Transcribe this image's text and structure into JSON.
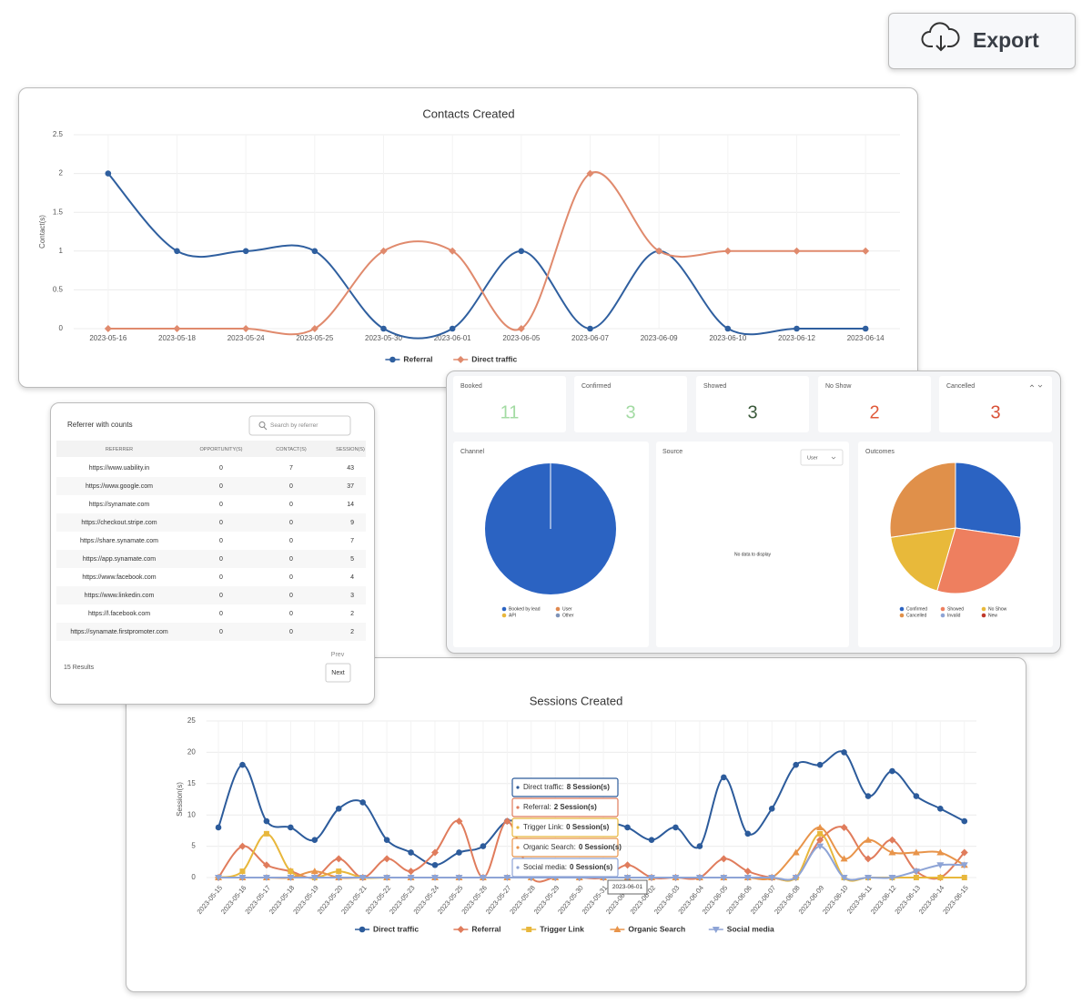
{
  "export_button": "Export",
  "chart_data": [
    {
      "type": "line",
      "title": "Contacts Created",
      "y_label": "Contact(s)",
      "x": [
        "2023-05-16",
        "2023-05-18",
        "2023-05-24",
        "2023-05-25",
        "2023-05-30",
        "2023-06-01",
        "2023-06-05",
        "2023-06-07",
        "2023-06-09",
        "2023-06-10",
        "2023-06-12",
        "2023-06-14"
      ],
      "ylim": [
        0,
        2.5
      ],
      "yticks": [
        0,
        0.5,
        1,
        1.5,
        2,
        2.5
      ],
      "grid": true,
      "legend": "bottom",
      "series": [
        {
          "name": "Referral",
          "color": "#2f5f9f",
          "marker": "circle",
          "values": [
            2,
            1,
            1,
            1,
            0,
            0,
            1,
            0,
            1,
            0,
            0,
            0
          ]
        },
        {
          "name": "Direct traffic",
          "color": "#e08a6d",
          "marker": "diamond",
          "values": [
            0,
            0,
            0,
            0,
            1,
            1,
            0,
            2,
            1,
            1,
            1,
            1
          ]
        }
      ]
    },
    {
      "type": "pie",
      "title": "Channel",
      "categories": [
        "Booked by lead",
        "User",
        "API",
        "Other"
      ],
      "colors": [
        "#2b63c2",
        "#e0894f",
        "#e8b73c",
        "#7f93b8"
      ],
      "values": [
        1,
        0,
        0,
        0
      ]
    },
    {
      "type": "pie",
      "title": "Outcomes",
      "categories": [
        "Confirmed",
        "Showed",
        "No Show",
        "Cancelled",
        "Invalid",
        "New"
      ],
      "colors": [
        "#2b63c2",
        "#ee7f5f",
        "#e8b93a",
        "#e0904a",
        "#8ea4d6",
        "#c0392b"
      ],
      "values": [
        3,
        3,
        2,
        3,
        0,
        0
      ]
    },
    {
      "type": "line",
      "title": "Sessions Created",
      "y_label": "Session(s)",
      "x": [
        "2023-05-15",
        "2023-05-16",
        "2023-05-17",
        "2023-05-18",
        "2023-05-19",
        "2023-05-20",
        "2023-05-21",
        "2023-05-22",
        "2023-05-23",
        "2023-05-24",
        "2023-05-25",
        "2023-05-26",
        "2023-05-27",
        "2023-05-28",
        "2023-05-29",
        "2023-05-30",
        "2023-05-31",
        "2023-06-01",
        "2023-06-02",
        "2023-06-03",
        "2023-06-04",
        "2023-06-05",
        "2023-06-06",
        "2023-06-07",
        "2023-06-08",
        "2023-06-09",
        "2023-06-10",
        "2023-06-11",
        "2023-06-12",
        "2023-06-13",
        "2023-06-14",
        "2023-06-15"
      ],
      "ylim": [
        0,
        25
      ],
      "yticks": [
        0,
        5,
        10,
        15,
        20,
        25
      ],
      "grid": true,
      "legend": "bottom",
      "series": [
        {
          "name": "Direct traffic",
          "color": "#2c5b9b",
          "marker": "circle",
          "values": [
            8,
            18,
            9,
            8,
            6,
            11,
            12,
            6,
            4,
            2,
            4,
            5,
            9,
            8,
            8,
            9,
            9,
            8,
            6,
            8,
            5,
            16,
            7,
            11,
            18,
            18,
            20,
            13,
            17,
            13,
            11,
            9
          ]
        },
        {
          "name": "Referral",
          "color": "#e07c5c",
          "marker": "diamond",
          "values": [
            0,
            5,
            2,
            1,
            0,
            3,
            0,
            3,
            1,
            4,
            9,
            0,
            9,
            0,
            0,
            0,
            0,
            2,
            0,
            0,
            0,
            3,
            1,
            0,
            0,
            6,
            8,
            3,
            6,
            1,
            0,
            4
          ]
        },
        {
          "name": "Trigger Link",
          "color": "#e8b73c",
          "marker": "square",
          "values": [
            0,
            1,
            7,
            1,
            0,
            1,
            0,
            0,
            0,
            0,
            0,
            0,
            0,
            0,
            0,
            0,
            0,
            0,
            0,
            0,
            0,
            0,
            0,
            0,
            0,
            7,
            0,
            0,
            0,
            0,
            0,
            0
          ]
        },
        {
          "name": "Organic Search",
          "color": "#e8944a",
          "marker": "triangle",
          "values": [
            0,
            0,
            0,
            0,
            1,
            0,
            0,
            0,
            0,
            0,
            0,
            0,
            0,
            0,
            0,
            0,
            0,
            0,
            0,
            0,
            0,
            0,
            0,
            0,
            4,
            8,
            3,
            6,
            4,
            4,
            4,
            2
          ]
        },
        {
          "name": "Social media",
          "color": "#8ea4d6",
          "marker": "triangle-down",
          "values": [
            0,
            0,
            0,
            0,
            0,
            0,
            0,
            0,
            0,
            0,
            0,
            0,
            0,
            0,
            0,
            0,
            0,
            0,
            0,
            0,
            0,
            0,
            0,
            0,
            0,
            5,
            0,
            0,
            0,
            1,
            2,
            2
          ]
        }
      ]
    }
  ],
  "referrer_table": {
    "title": "Referrer with counts",
    "search_placeholder": "Search by referrer",
    "columns": [
      "REFERRER",
      "OPPORTUNITY(S)",
      "CONTACT(S)",
      "SESSION(S)"
    ],
    "rows": [
      [
        "https://www.uability.in",
        0,
        7,
        43
      ],
      [
        "https://www.google.com",
        0,
        0,
        37
      ],
      [
        "https://synamate.com",
        0,
        0,
        14
      ],
      [
        "https://checkout.stripe.com",
        0,
        0,
        9
      ],
      [
        "https://share.synamate.com",
        0,
        0,
        7
      ],
      [
        "https://app.synamate.com",
        0,
        0,
        5
      ],
      [
        "https://www.facebook.com",
        0,
        0,
        4
      ],
      [
        "https://www.linkedin.com",
        0,
        0,
        3
      ],
      [
        "https://l.facebook.com",
        0,
        0,
        2
      ],
      [
        "https://synamate.firstpromoter.com",
        0,
        0,
        2
      ]
    ],
    "results": "15 Results",
    "prev": "Prev",
    "next": "Next"
  },
  "stats": [
    {
      "label": "Booked",
      "value": 11,
      "color": "#a3dba3"
    },
    {
      "label": "Confirmed",
      "value": 3,
      "color": "#a3dba3"
    },
    {
      "label": "Showed",
      "value": 3,
      "color": "#3b5a3b"
    },
    {
      "label": "No Show",
      "value": 2,
      "color": "#e05a3a"
    },
    {
      "label": "Cancelled",
      "value": 3,
      "color": "#d9533a"
    }
  ],
  "source_panel": {
    "title": "Source",
    "filter": "User",
    "empty_message": "No data to display"
  },
  "tooltip": {
    "items": [
      {
        "label": "Direct traffic:",
        "value": "8 Session(s)",
        "color": "#2c5b9b"
      },
      {
        "label": "Referral:",
        "value": "2 Session(s)",
        "color": "#e07c5c"
      },
      {
        "label": "Trigger Link:",
        "value": "0 Session(s)",
        "color": "#e8b73c"
      },
      {
        "label": "Organic Search:",
        "value": "0 Session(s)",
        "color": "#e8944a"
      },
      {
        "label": "Social media:",
        "value": "0 Session(s)",
        "color": "#8ea4d6"
      }
    ],
    "x_label": "2023-06-01"
  }
}
